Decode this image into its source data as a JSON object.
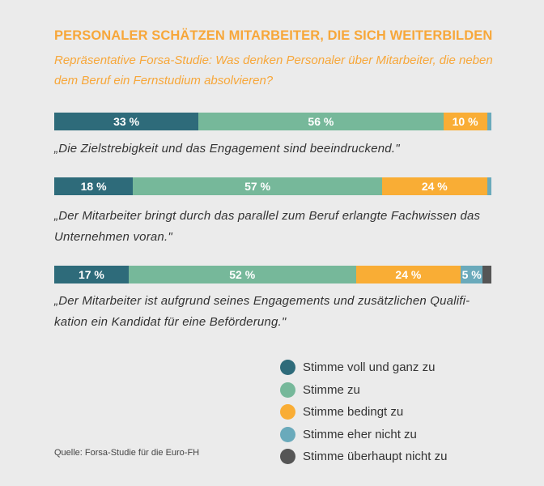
{
  "header": {
    "title": "PERSONALER SCHÄTZEN MITARBEITER, DIE SICH WEITERBILDEN",
    "subtitle": "Repräsentative Forsa-Studie: Was denken Personaler über Mitarbeiter, die neben dem Beruf ein Fernstudium absolvieren?"
  },
  "colors": {
    "title": "#f7a73a",
    "voll": "#2e6b7a",
    "zu": "#76b89a",
    "bedingt": "#f9ad35",
    "eher_nicht": "#6aaabb",
    "ueberhaupt_nicht": "#555555"
  },
  "chart_data": {
    "type": "bar",
    "orientation": "horizontal",
    "stacked": true,
    "unit": "%",
    "title": "PERSONALER SCHÄTZEN MITARBEITER, DIE SICH WEITERBILDEN",
    "categories": [
      "„Die Zielstrebigkeit und das Engagement sind beeindruckend.\"",
      "„Der Mitarbeiter bringt durch das parallel zum Beruf erlangte Fachwissen das Unternehmen voran.\"",
      "„Der Mitarbeiter ist aufgrund seines Engagements und zusätzlichen Qualifi- kation ein Kandidat für eine Beförderung.\""
    ],
    "series": [
      {
        "name": "Stimme voll und ganz zu",
        "color": "#2e6b7a",
        "values": [
          33,
          18,
          17
        ],
        "labels": [
          "33 %",
          "18 %",
          "17 %"
        ]
      },
      {
        "name": "Stimme zu",
        "color": "#76b89a",
        "values": [
          56,
          57,
          52
        ],
        "labels": [
          "56 %",
          "57 %",
          "52 %"
        ]
      },
      {
        "name": "Stimme bedingt zu",
        "color": "#f9ad35",
        "values": [
          10,
          24,
          24
        ],
        "labels": [
          "10 %",
          "24 %",
          "24 %"
        ]
      },
      {
        "name": "Stimme eher nicht zu",
        "color": "#6aaabb",
        "values": [
          1,
          1,
          5
        ],
        "labels": [
          "",
          "",
          "5 %"
        ]
      },
      {
        "name": "Stimme überhaupt nicht zu",
        "color": "#555555",
        "values": [
          0,
          0,
          2
        ],
        "labels": [
          "",
          "",
          ""
        ]
      }
    ],
    "legend_position": "bottom-right"
  },
  "quotes": [
    "„Die Zielstrebigkeit und das Engagement sind beeindruckend.\"",
    "„Der Mitarbeiter bringt durch das parallel zum Beruf erlangte Fachwissen das Unternehmen voran.\"",
    "„Der Mitarbeiter ist aufgrund seines Engagements und zusätzlichen Qualifi- kation ein Kandidat für eine Beförderung.\""
  ],
  "legend": [
    {
      "label": "Stimme voll und ganz zu",
      "color": "#2e6b7a"
    },
    {
      "label": "Stimme zu",
      "color": "#76b89a"
    },
    {
      "label": "Stimme bedingt zu",
      "color": "#f9ad35"
    },
    {
      "label": "Stimme eher nicht zu",
      "color": "#6aaabb"
    },
    {
      "label": "Stimme überhaupt nicht zu",
      "color": "#555555"
    }
  ],
  "source": "Quelle: Forsa-Studie für die Euro-FH"
}
